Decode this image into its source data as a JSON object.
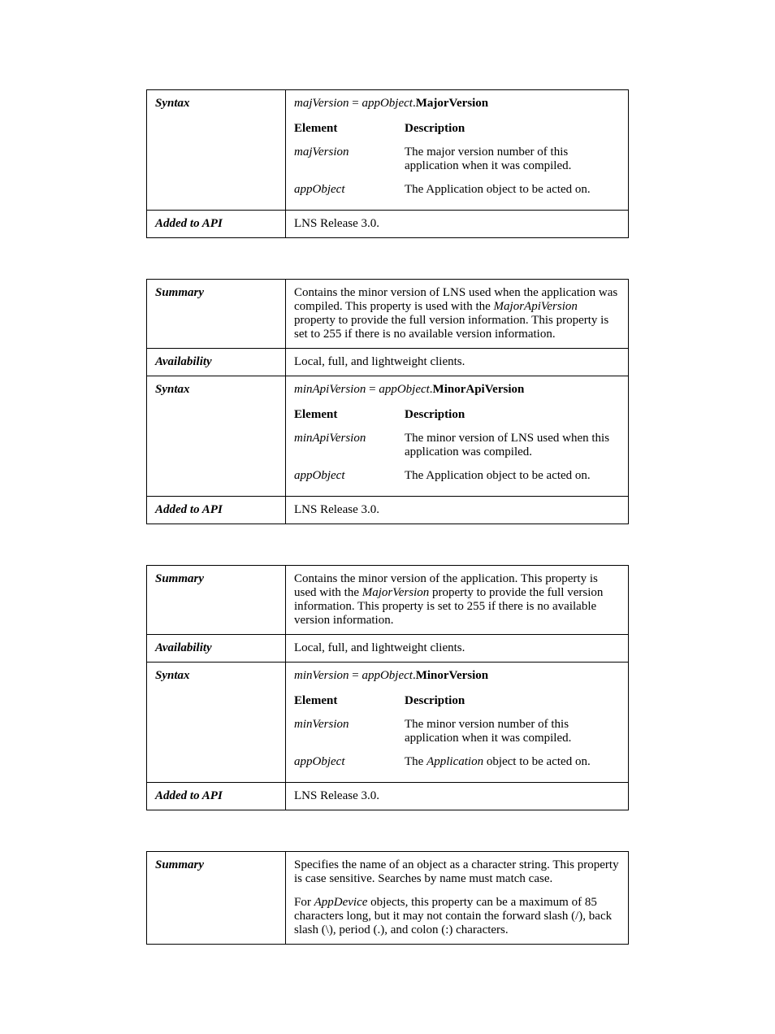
{
  "tables": [
    {
      "rows": [
        {
          "label": "Syntax",
          "syntax_lhs": "majVersion",
          "syntax_op": " = ",
          "syntax_obj": "appObject",
          "syntax_dot": ".",
          "syntax_prop": "MajorVersion",
          "header_element": "Element",
          "header_desc": "Description",
          "params": [
            {
              "name": "majVersion",
              "name_style": "italic",
              "desc": "The major version number of this application when it was compiled."
            },
            {
              "name": "appObject",
              "name_style": "italic",
              "desc": "The Application object to be acted on."
            }
          ]
        },
        {
          "label": "Added to API",
          "content": "LNS Release 3.0."
        }
      ]
    },
    {
      "rows": [
        {
          "label": "Summary",
          "paragraphs": [
            {
              "segments": [
                {
                  "text": "Contains the minor version of LNS used when the application was compiled.  This property is used with the "
                },
                {
                  "text": "MajorApiVersion",
                  "style": "italic"
                },
                {
                  "text": " property to provide the full version information.  This property is set to 255 if there is no available version information."
                }
              ]
            }
          ]
        },
        {
          "label": "Availability",
          "content": "Local, full, and lightweight clients."
        },
        {
          "label": "Syntax",
          "syntax_lhs": "minApiVersion",
          "syntax_op": " = ",
          "syntax_obj": "appObject",
          "syntax_dot": ".",
          "syntax_prop": "MinorApiVersion",
          "header_element": "Element",
          "header_desc": "Description",
          "params": [
            {
              "name": "minApiVersion",
              "name_style": "italic",
              "desc": "The minor version of LNS used when this application was compiled."
            },
            {
              "name": "appObject",
              "name_style": "italic",
              "desc": "The Application object to be acted on."
            }
          ]
        },
        {
          "label": "Added to API",
          "content": "LNS Release 3.0."
        }
      ]
    },
    {
      "rows": [
        {
          "label": "Summary",
          "paragraphs": [
            {
              "segments": [
                {
                  "text": "Contains the minor version of the application.  This property is used with the "
                },
                {
                  "text": "MajorVersion",
                  "style": "italic"
                },
                {
                  "text": " property to provide the full version information.  This property is set to 255 if there is no available version information."
                }
              ]
            }
          ]
        },
        {
          "label": "Availability",
          "content": "Local, full, and lightweight clients."
        },
        {
          "label": "Syntax",
          "syntax_lhs": "minVersion",
          "syntax_op": " = ",
          "syntax_obj": "appObject",
          "syntax_dot": ".",
          "syntax_prop": "MinorVersion",
          "header_element": "Element",
          "header_desc": "Description",
          "params": [
            {
              "name": "minVersion",
              "name_style": "italic",
              "desc": "The minor version number of this application when it was compiled."
            },
            {
              "name": "appObject",
              "name_style": "italic",
              "desc_segments": [
                {
                  "text": "The "
                },
                {
                  "text": "Application",
                  "style": "italic"
                },
                {
                  "text": " object to be acted on."
                }
              ]
            }
          ]
        },
        {
          "label": "Added to API",
          "content": "LNS Release 3.0."
        }
      ]
    },
    {
      "rows": [
        {
          "label": "Summary",
          "paragraphs": [
            {
              "segments": [
                {
                  "text": "Specifies the name of an object as a character string. This property is case sensitive.  Searches by name must match case."
                }
              ]
            },
            {
              "segments": [
                {
                  "text": "For "
                },
                {
                  "text": "AppDevice",
                  "style": "italic"
                },
                {
                  "text": " objects, this property can be a maximum of 85 characters long, but it may not contain the forward slash (/), back slash (\\), period (.), and colon (:) characters."
                }
              ]
            }
          ]
        }
      ]
    }
  ]
}
